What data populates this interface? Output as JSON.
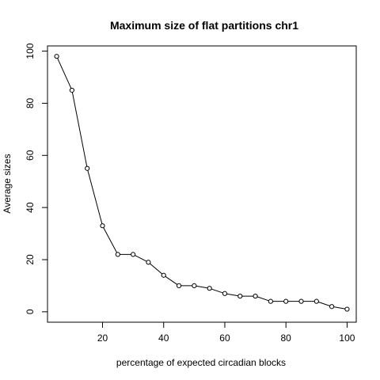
{
  "chart_data": {
    "type": "line",
    "title": "Maximum size of flat partitions chr1",
    "xlabel": "percentage of expected circadian blocks",
    "ylabel": "Average sizes",
    "xlim": [
      2,
      103
    ],
    "ylim": [
      -4,
      102
    ],
    "xticks": [
      20,
      40,
      60,
      80,
      100
    ],
    "yticks": [
      0,
      20,
      40,
      60,
      80,
      100
    ],
    "grid": false,
    "legend": "none",
    "markers": "open-circle",
    "x": [
      5,
      10,
      15,
      20,
      25,
      30,
      35,
      40,
      45,
      50,
      55,
      60,
      65,
      70,
      75,
      80,
      85,
      90,
      95,
      100
    ],
    "y": [
      98,
      85,
      55,
      33,
      22,
      22,
      19,
      14,
      10,
      10,
      9,
      7,
      6,
      6,
      4,
      4,
      4,
      4,
      2,
      1
    ]
  }
}
